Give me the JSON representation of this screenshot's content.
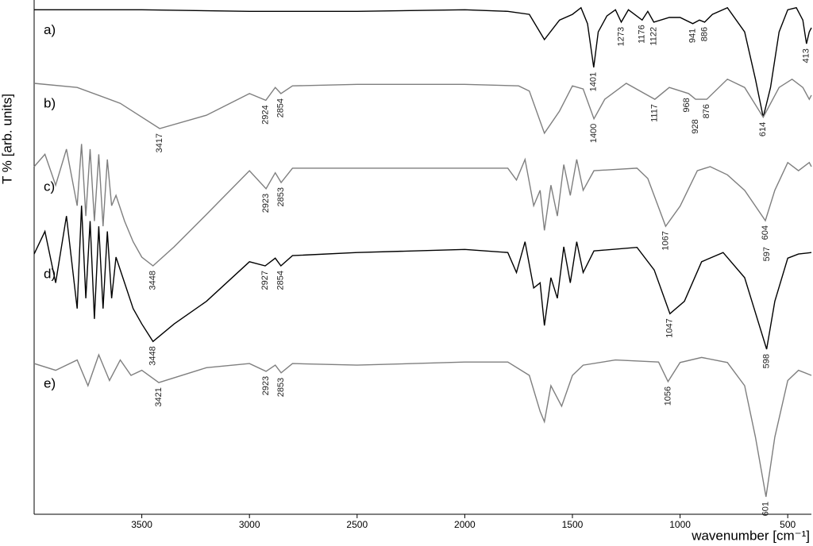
{
  "chart_data": {
    "type": "line",
    "y_label": "T % [arb. units]",
    "x_label": "wavenumber [cm⁻¹]",
    "xlim": [
      4000,
      390
    ],
    "ylim": [
      0,
      100
    ],
    "xticks": [
      3500,
      3000,
      2500,
      2000,
      1500,
      1000,
      500
    ],
    "series": [
      {
        "name": "a)",
        "color": "#000000",
        "x": [
          4000,
          3500,
          3000,
          2500,
          2000,
          1800,
          1700,
          1630,
          1560,
          1500,
          1460,
          1430,
          1401,
          1380,
          1340,
          1300,
          1273,
          1240,
          1176,
          1150,
          1122,
          1050,
          1000,
          941,
          910,
          886,
          850,
          780,
          700,
          650,
          614,
          580,
          540,
          500,
          460,
          430,
          413,
          400,
          390
        ],
        "values": [
          98.1,
          98.1,
          97.8,
          97.8,
          98.1,
          97.8,
          97.2,
          92.3,
          96.1,
          97.2,
          98.5,
          95.4,
          86.9,
          93.8,
          96.9,
          98.1,
          95.7,
          98.1,
          96.1,
          97.8,
          95.7,
          96.6,
          96.6,
          95.4,
          96.1,
          95.7,
          97.2,
          98.5,
          93.8,
          84.6,
          77.2,
          83.0,
          93.8,
          98.1,
          98.5,
          96.1,
          91.5,
          93.8,
          94.6
        ],
        "peaks": [
          1401,
          1273,
          1176,
          1122,
          941,
          886,
          413
        ]
      },
      {
        "name": "b)",
        "color": "#7f7f7f",
        "x": [
          4000,
          3800,
          3600,
          3417,
          3200,
          3000,
          2924,
          2880,
          2854,
          2800,
          2500,
          2000,
          1750,
          1700,
          1630,
          1560,
          1500,
          1450,
          1400,
          1350,
          1250,
          1117,
          1050,
          960,
          928,
          876,
          780,
          700,
          614,
          540,
          480,
          430,
          400,
          390
        ],
        "values": [
          83.8,
          83.0,
          79.9,
          75.0,
          77.6,
          81.8,
          80.5,
          83.0,
          81.8,
          83.3,
          83.6,
          83.6,
          83.3,
          82.3,
          74.1,
          78.4,
          83.3,
          82.7,
          76.9,
          80.7,
          83.8,
          80.7,
          83.0,
          81.8,
          80.7,
          80.7,
          84.6,
          83.0,
          77.2,
          83.0,
          84.6,
          83.0,
          80.7,
          81.5
        ],
        "peaks": [
          3417,
          2924,
          2854,
          1400,
          1117,
          968,
          928,
          876,
          614
        ]
      },
      {
        "name": "c)",
        "color": "#7f7f7f",
        "x": [
          4000,
          3950,
          3900,
          3850,
          3800,
          3780,
          3760,
          3740,
          3720,
          3700,
          3680,
          3660,
          3640,
          3620,
          3580,
          3540,
          3500,
          3448,
          3350,
          3200,
          3000,
          2923,
          2880,
          2853,
          2800,
          2500,
          2000,
          1800,
          1760,
          1720,
          1680,
          1650,
          1630,
          1600,
          1570,
          1540,
          1510,
          1480,
          1450,
          1400,
          1200,
          1150,
          1067,
          1000,
          920,
          860,
          780,
          700,
          604,
          560,
          500,
          450,
          400,
          390
        ],
        "values": [
          67.6,
          70,
          64,
          71,
          60,
          72,
          58,
          71,
          57,
          70,
          56,
          69,
          60,
          62,
          57,
          53,
          50,
          48.3,
          52,
          58.3,
          66.8,
          63.3,
          66.4,
          64.5,
          67.3,
          67.3,
          67.3,
          67.3,
          65,
          69,
          60,
          63,
          55.2,
          64,
          58,
          68,
          62,
          69,
          63,
          66.8,
          67.3,
          65.3,
          56.0,
          59.9,
          66.8,
          67.6,
          66.0,
          63.0,
          57.1,
          63.0,
          68.4,
          66.8,
          68.4,
          67.6
        ],
        "peaks": [
          3448,
          2923,
          2853,
          1067,
          604,
          597
        ]
      },
      {
        "name": "d)",
        "color": "#000000",
        "x": [
          4000,
          3950,
          3900,
          3850,
          3800,
          3780,
          3760,
          3740,
          3720,
          3700,
          3680,
          3660,
          3640,
          3620,
          3580,
          3540,
          3500,
          3448,
          3350,
          3200,
          3000,
          2927,
          2880,
          2854,
          2800,
          2500,
          2000,
          1800,
          1760,
          1720,
          1680,
          1650,
          1630,
          1600,
          1570,
          1540,
          1510,
          1480,
          1450,
          1400,
          1200,
          1120,
          1047,
          980,
          900,
          800,
          700,
          598,
          560,
          500,
          450,
          390
        ],
        "values": [
          50.6,
          55,
          45,
          58,
          40,
          60,
          42,
          57,
          38,
          56,
          40,
          55,
          42,
          50,
          45,
          40,
          37,
          33.6,
          37,
          41.4,
          49.1,
          48.3,
          49.8,
          48.3,
          50.3,
          50.9,
          51.5,
          50.9,
          47,
          53,
          44,
          45,
          36.7,
          46,
          42,
          52,
          45,
          53,
          47,
          51.2,
          51.9,
          47.5,
          39.0,
          41.4,
          49.1,
          50.9,
          46.0,
          32.1,
          41.4,
          49.8,
          50.6,
          50.9
        ],
        "peaks": [
          3448,
          2927,
          2854,
          1047,
          598
        ]
      },
      {
        "name": "e)",
        "color": "#7f7f7f",
        "x": [
          4000,
          3900,
          3800,
          3750,
          3700,
          3650,
          3600,
          3550,
          3500,
          3421,
          3200,
          3000,
          2923,
          2880,
          2853,
          2800,
          2500,
          2000,
          1800,
          1700,
          1650,
          1630,
          1600,
          1550,
          1500,
          1450,
          1300,
          1100,
          1056,
          1000,
          900,
          780,
          700,
          650,
          601,
          560,
          500,
          450,
          390
        ],
        "values": [
          29.3,
          28,
          30,
          25,
          31,
          26,
          30,
          27,
          28,
          25.6,
          28.5,
          29.3,
          27.8,
          29,
          27.5,
          29.3,
          29.0,
          29.6,
          29.6,
          27,
          20,
          18,
          25,
          21,
          27,
          29,
          30,
          29.6,
          25.8,
          29.5,
          30.5,
          29.5,
          25,
          15,
          3.4,
          15,
          26,
          28,
          27
        ],
        "peaks": [
          3421,
          2923,
          2853,
          1056,
          601
        ]
      }
    ]
  }
}
